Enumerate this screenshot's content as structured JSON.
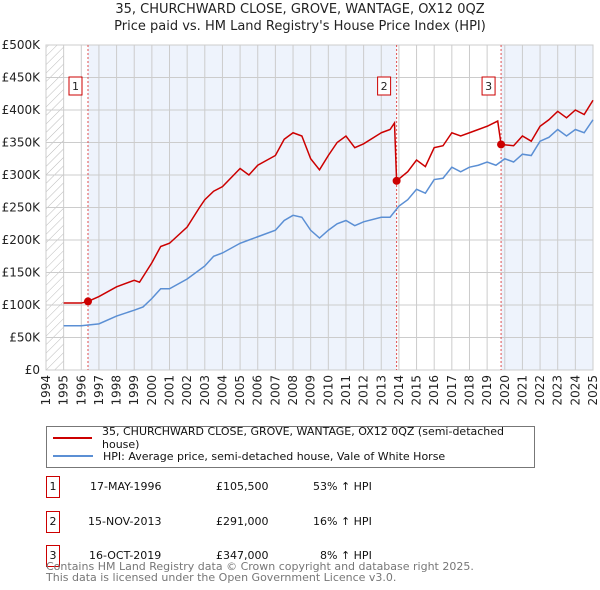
{
  "chart_data": {
    "type": "line",
    "title": "35, CHURCHWARD CLOSE, GROVE, WANTAGE, OX12 0QZ",
    "subtitle": "Price paid vs. HM Land Registry's House Price Index (HPI)",
    "xlim": [
      1994,
      2025
    ],
    "ylim": [
      0,
      500000
    ],
    "x_ticks": [
      "1994",
      "1995",
      "1996",
      "1997",
      "1998",
      "1999",
      "2000",
      "2001",
      "2002",
      "2003",
      "2004",
      "2005",
      "2006",
      "2007",
      "2008",
      "2009",
      "2010",
      "2011",
      "2012",
      "2013",
      "2014",
      "2015",
      "2016",
      "2017",
      "2018",
      "2019",
      "2020",
      "2021",
      "2022",
      "2023",
      "2024",
      "2025"
    ],
    "y_ticks": [
      {
        "v": 0,
        "l": "£0"
      },
      {
        "v": 50000,
        "l": "£50K"
      },
      {
        "v": 100000,
        "l": "£100K"
      },
      {
        "v": 150000,
        "l": "£150K"
      },
      {
        "v": 200000,
        "l": "£200K"
      },
      {
        "v": 250000,
        "l": "£250K"
      },
      {
        "v": 300000,
        "l": "£300K"
      },
      {
        "v": 350000,
        "l": "£350K"
      },
      {
        "v": 400000,
        "l": "£400K"
      },
      {
        "v": 450000,
        "l": "£450K"
      },
      {
        "v": 500000,
        "l": "£500K"
      }
    ],
    "grid": true,
    "colors": {
      "property": "#cc0000",
      "hpi": "#5b8fd4",
      "shade": "#eef3fc"
    },
    "series": [
      {
        "name": "35, CHURCHWARD CLOSE, GROVE, WANTAGE, OX12 0QZ (semi-detached house)",
        "x": [
          1995,
          1996,
          1996.38,
          1997,
          1998,
          1999,
          1999.3,
          2000,
          2000.5,
          2001,
          2002,
          2002.7,
          2003,
          2003.5,
          2004,
          2005,
          2005.5,
          2006,
          2007,
          2007.5,
          2008,
          2008.5,
          2009,
          2009.5,
          2010,
          2010.5,
          2011,
          2011.5,
          2012,
          2013,
          2013.5,
          2013.75,
          2013.87,
          2014.5,
          2015,
          2015.5,
          2016,
          2016.5,
          2017,
          2017.5,
          2018,
          2018.5,
          2019,
          2019.6,
          2019.79,
          2020.5,
          2021,
          2021.5,
          2022,
          2022.5,
          2023,
          2023.5,
          2024,
          2024.5,
          2025
        ],
        "y": [
          103,
          103,
          105.5,
          113,
          128,
          138,
          135,
          165,
          190,
          195,
          220,
          250,
          262,
          275,
          282,
          310,
          300,
          315,
          330,
          355,
          365,
          360,
          325,
          308,
          330,
          350,
          360,
          342,
          348,
          365,
          370,
          380,
          291,
          305,
          323,
          313,
          342,
          345,
          365,
          360,
          365,
          370,
          375,
          383,
          347,
          345,
          360,
          352,
          375,
          385,
          398,
          388,
          400,
          393,
          415
        ]
      },
      {
        "name": "HPI: Average price, semi-detached house, Vale of White Horse",
        "x": [
          1995,
          1996,
          1997,
          1998,
          1999,
          1999.5,
          2000,
          2000.5,
          2001,
          2002,
          2003,
          2003.5,
          2004,
          2005,
          2005.5,
          2006,
          2007,
          2007.5,
          2008,
          2008.5,
          2009,
          2009.5,
          2010,
          2010.5,
          2011,
          2011.5,
          2012,
          2013,
          2013.5,
          2014,
          2014.5,
          2015,
          2015.5,
          2016,
          2016.5,
          2017,
          2017.5,
          2018,
          2018.5,
          2019,
          2019.5,
          2020,
          2020.5,
          2021,
          2021.5,
          2022,
          2022.5,
          2023,
          2023.5,
          2024,
          2024.5,
          2025
        ],
        "y": [
          68,
          68,
          71,
          83,
          92,
          97,
          110,
          125,
          125,
          140,
          160,
          175,
          180,
          195,
          200,
          205,
          215,
          230,
          238,
          235,
          215,
          203,
          215,
          225,
          230,
          222,
          228,
          235,
          235,
          252,
          262,
          278,
          272,
          293,
          295,
          312,
          305,
          312,
          315,
          320,
          315,
          325,
          320,
          332,
          330,
          352,
          358,
          370,
          360,
          370,
          365,
          385
        ]
      }
    ],
    "sales": [
      {
        "id": "1",
        "x": 1996.38,
        "date": "17-MAY-1996",
        "price": "£105,500",
        "value": 105500,
        "hpi": "53% ↑ HPI"
      },
      {
        "id": "2",
        "x": 2013.87,
        "date": "15-NOV-2013",
        "price": "£291,000",
        "value": 291000,
        "hpi": "16% ↑ HPI"
      },
      {
        "id": "3",
        "x": 2019.79,
        "date": "16-OCT-2019",
        "price": "£347,000",
        "value": 347000,
        "hpi": "8% ↑ HPI"
      }
    ]
  },
  "footer": {
    "line1": "Contains HM Land Registry data © Crown copyright and database right 2025.",
    "line2": "This data is licensed under the Open Government Licence v3.0."
  }
}
